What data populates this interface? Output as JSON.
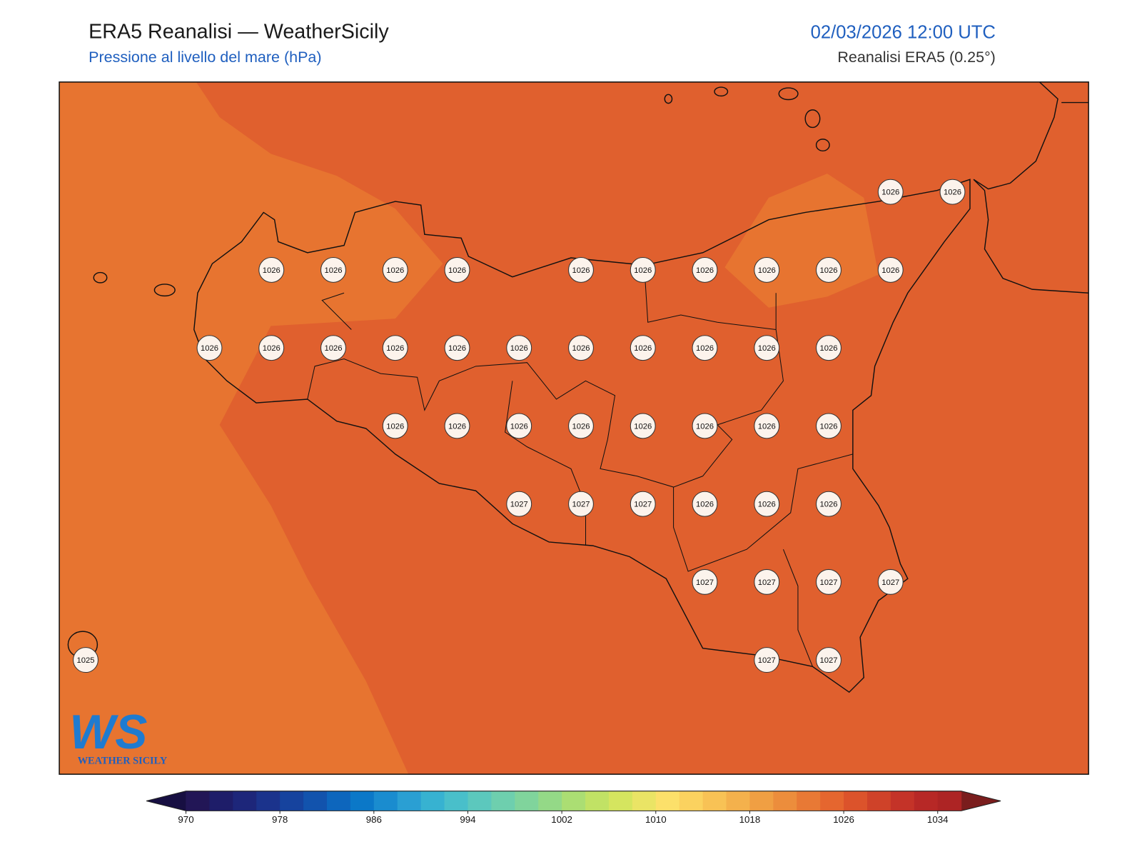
{
  "header": {
    "title": "ERA5 Reanalisi — WeatherSicily",
    "subtitle": "Pressione al livello del mare (hPa)",
    "datetime": "02/03/2026 12:00 UTC",
    "source": "Reanalisi ERA5 (0.25°)"
  },
  "map": {
    "grid": [
      [
        null,
        null,
        null,
        null,
        null,
        null,
        null,
        null,
        null,
        null,
        null,
        null,
        null,
        1026,
        1026
      ],
      [
        null,
        null,
        null,
        1026,
        1026,
        1026,
        1026,
        null,
        1026,
        1026,
        1026,
        1026,
        1026,
        1026,
        null
      ],
      [
        null,
        null,
        1026,
        1026,
        1026,
        1026,
        1026,
        1026,
        1026,
        1026,
        1026,
        1026,
        1026,
        null,
        null
      ],
      [
        null,
        null,
        null,
        null,
        null,
        1026,
        1026,
        1026,
        1026,
        1026,
        1026,
        1026,
        1026,
        null,
        null
      ],
      [
        null,
        null,
        null,
        null,
        null,
        null,
        null,
        1027,
        1027,
        1027,
        1026,
        1026,
        1026,
        null,
        null
      ],
      [
        null,
        null,
        null,
        null,
        null,
        null,
        null,
        null,
        null,
        null,
        1027,
        1027,
        1027,
        1027,
        null
      ],
      [
        1025,
        null,
        null,
        null,
        null,
        null,
        null,
        null,
        null,
        null,
        null,
        1027,
        1027,
        null,
        null
      ]
    ]
  },
  "colorbar": {
    "range": [
      970,
      1036
    ],
    "ticks": [
      970,
      978,
      986,
      994,
      1002,
      1010,
      1018,
      1026,
      1034
    ],
    "colors": [
      "#221656",
      "#1e1d69",
      "#1d267a",
      "#1b338c",
      "#16439e",
      "#1253ad",
      "#0d66bd",
      "#0b78c8",
      "#1a8ccf",
      "#2a9fd3",
      "#37b2d1",
      "#49bfca",
      "#5cc8bd",
      "#6ecfae",
      "#80d49c",
      "#94d987",
      "#abde73",
      "#c1e265",
      "#d5e55f",
      "#eae465",
      "#fce06a",
      "#fbd25f",
      "#f8c255",
      "#f4b14c",
      "#f09f43",
      "#ec8d3c",
      "#e87935",
      "#e5662f",
      "#dc532b",
      "#cf4229",
      "#c43328",
      "#b72826",
      "#ad2424"
    ],
    "under_color": "#170f42",
    "over_color": "#7a1d1d"
  },
  "logo": {
    "text": "WS",
    "tagline": "WEATHER SICILY"
  }
}
